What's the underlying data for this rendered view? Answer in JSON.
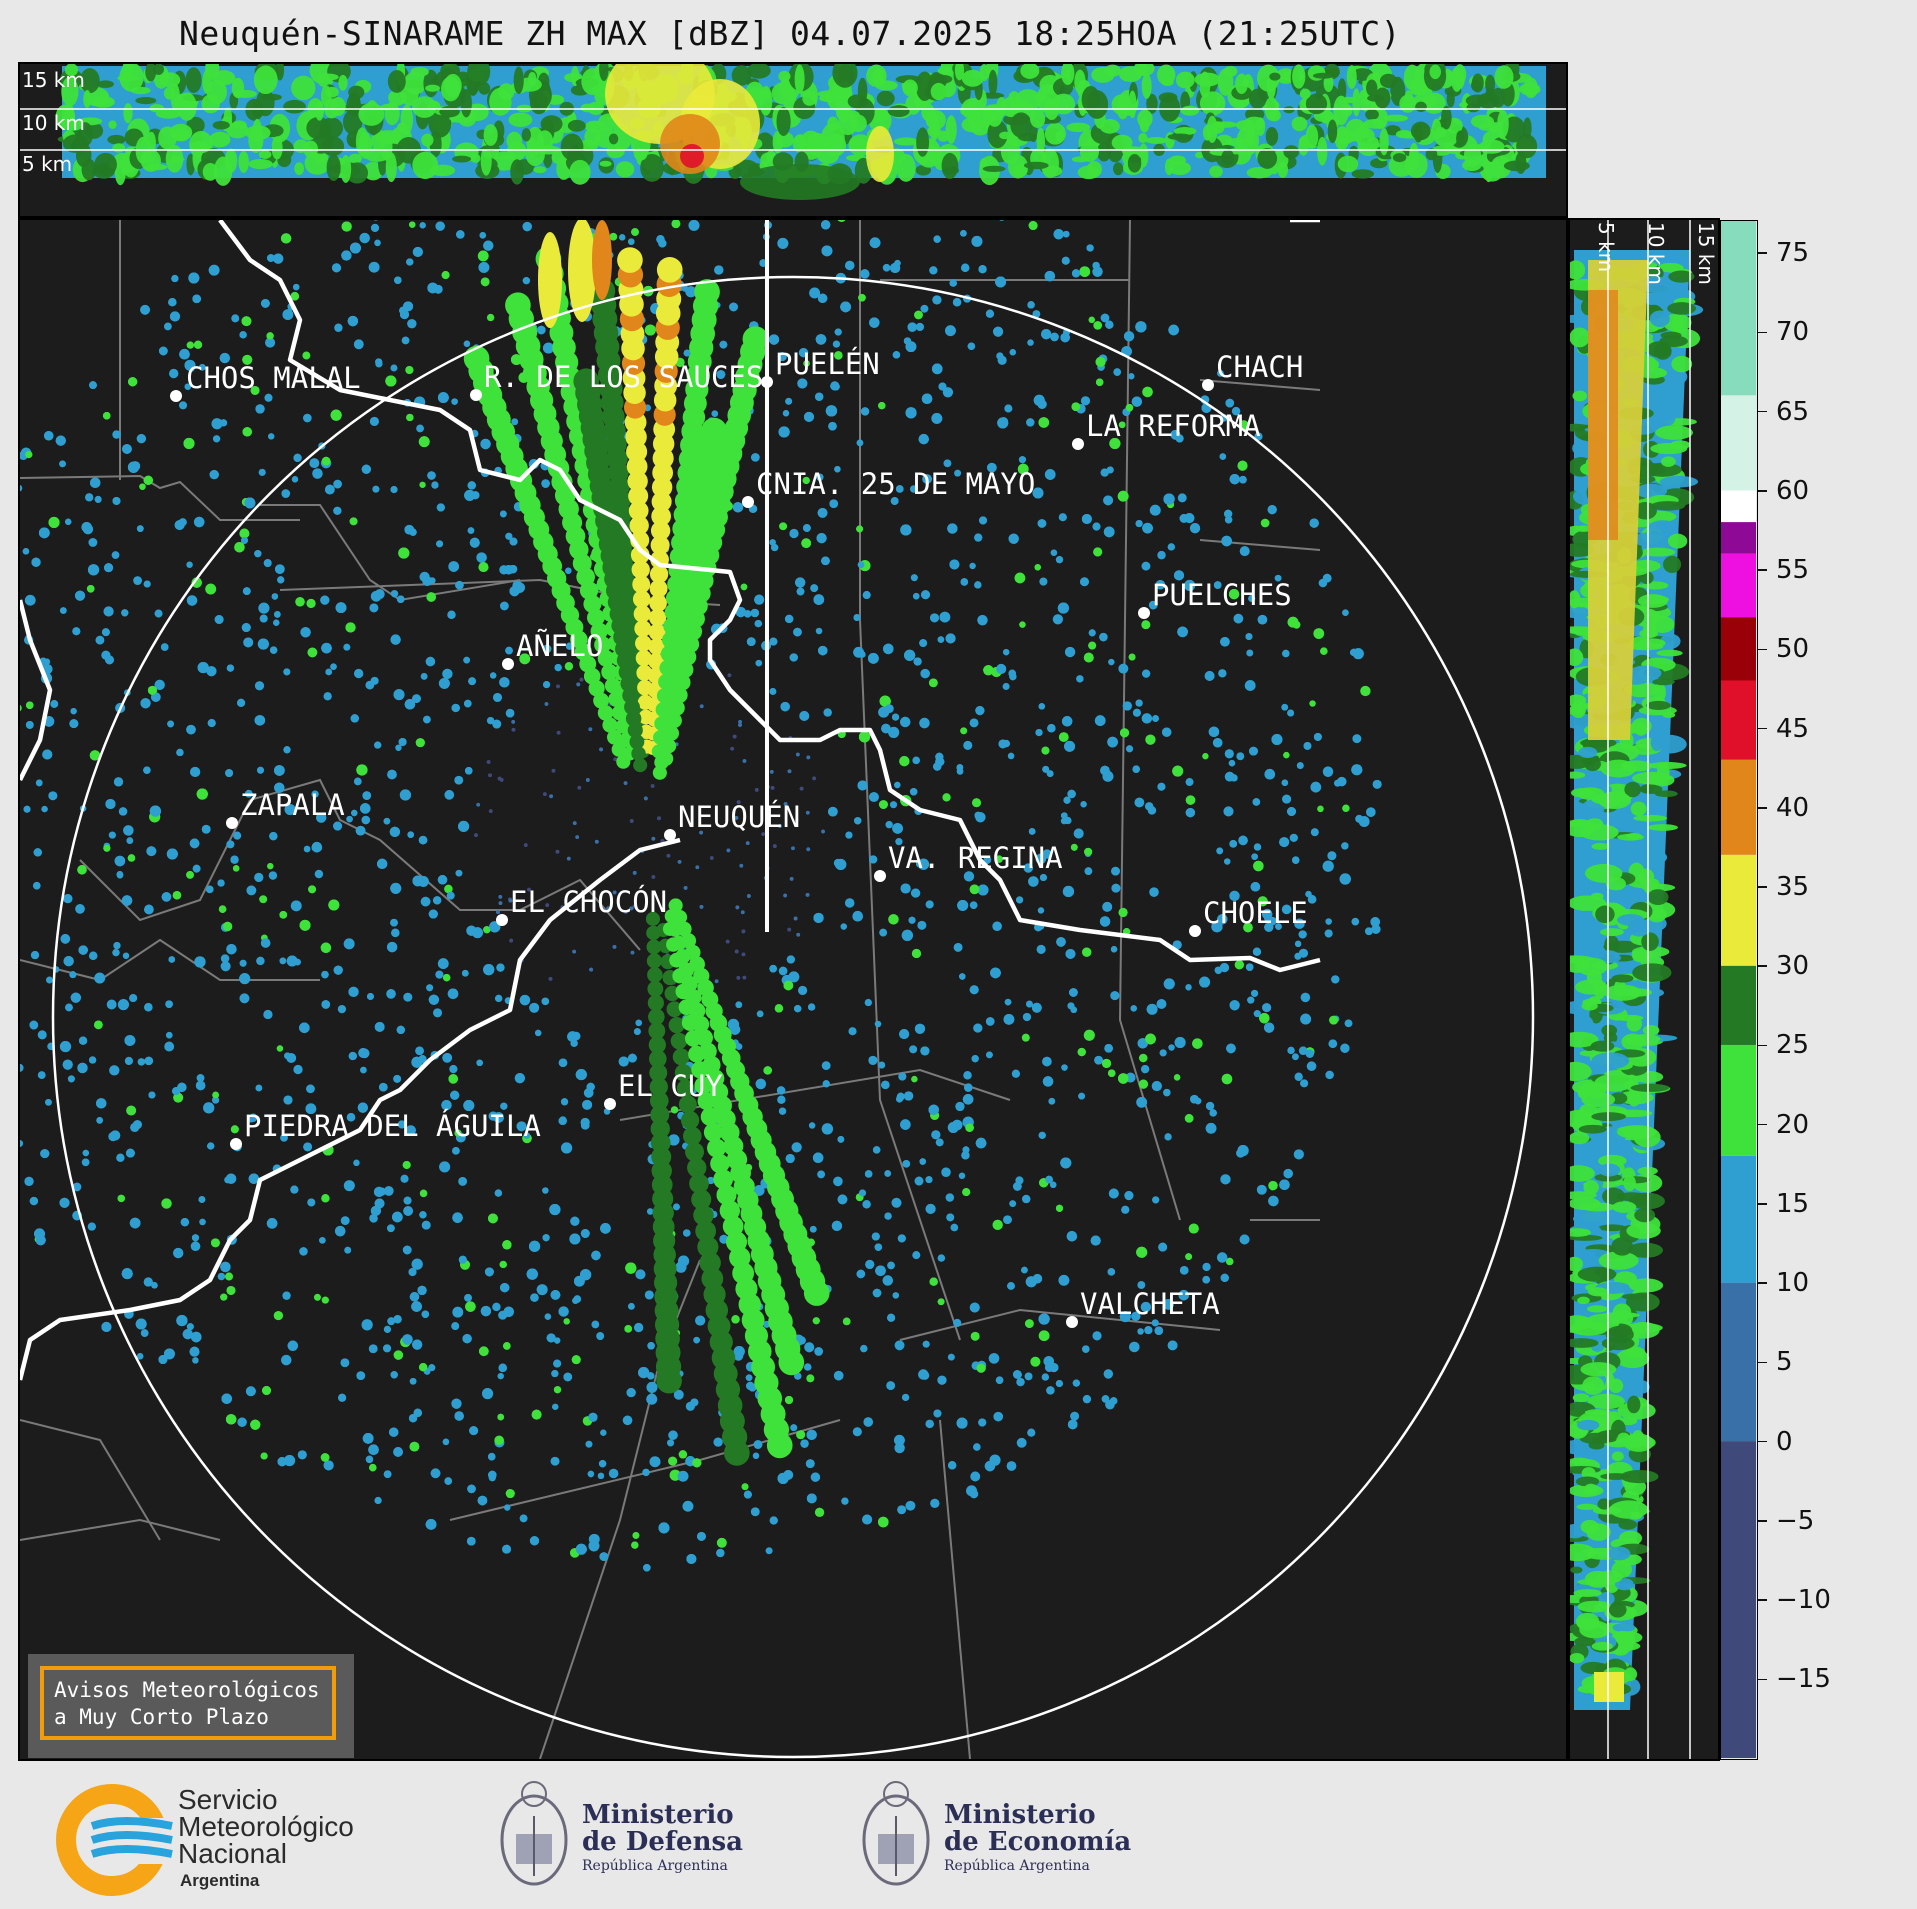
{
  "title": "Neuquén-SINARAME ZH MAX [dBZ] 04.07.2025 18:25HOA (21:25UTC)",
  "top_panel": {
    "alt_labels": [
      "15 km",
      "10 km",
      "5 km"
    ]
  },
  "side_panel": {
    "alt_labels": [
      "5 km",
      "10 km",
      "15 km"
    ]
  },
  "colorbar": {
    "unit": "dBZ",
    "ticks": [
      "75",
      "70",
      "65",
      "60",
      "55",
      "50",
      "45",
      "40",
      "35",
      "30",
      "25",
      "20",
      "15",
      "10",
      "5",
      "0",
      "−5",
      "−10",
      "−15"
    ],
    "tick_values": [
      75,
      70,
      65,
      60,
      55,
      50,
      45,
      40,
      35,
      30,
      25,
      20,
      15,
      10,
      5,
      0,
      -5,
      -10,
      -15
    ],
    "range": [
      -20,
      77
    ],
    "stops": [
      {
        "from": -20,
        "to": 0,
        "color": "#3f4a7a"
      },
      {
        "from": 0,
        "to": 10,
        "color": "#3a70a8"
      },
      {
        "from": 10,
        "to": 18,
        "color": "#2e9fd0"
      },
      {
        "from": 18,
        "to": 25,
        "color": "#3ee23a"
      },
      {
        "from": 25,
        "to": 30,
        "color": "#247a24"
      },
      {
        "from": 30,
        "to": 37,
        "color": "#eaea3a"
      },
      {
        "from": 37,
        "to": 43,
        "color": "#e0861a"
      },
      {
        "from": 43,
        "to": 48,
        "color": "#e0102a"
      },
      {
        "from": 48,
        "to": 52,
        "color": "#9a0008"
      },
      {
        "from": 52,
        "to": 56,
        "color": "#ee10e0"
      },
      {
        "from": 56,
        "to": 58,
        "color": "#8e0a96"
      },
      {
        "from": 58,
        "to": 60,
        "color": "#ffffff"
      },
      {
        "from": 60,
        "to": 66,
        "color": "#d5f2e6"
      },
      {
        "from": 66,
        "to": 77,
        "color": "#86dcbc"
      }
    ]
  },
  "map": {
    "cities": [
      {
        "id": "chos-malal",
        "name": "CHOS MALAL"
      },
      {
        "id": "rincon-de-los-sauces",
        "name": "R. DE LOS SAUCES"
      },
      {
        "id": "puelen",
        "name": "PUELÉN"
      },
      {
        "id": "chacharramendi",
        "name": "CHACH"
      },
      {
        "id": "la-reforma",
        "name": "LA REFORMA"
      },
      {
        "id": "colonia-25-de-mayo",
        "name": "CNIA. 25 DE MAYO"
      },
      {
        "id": "puelches",
        "name": "PUELCHES"
      },
      {
        "id": "anelo",
        "name": "AÑELO"
      },
      {
        "id": "zapala",
        "name": "ZAPALA"
      },
      {
        "id": "neuquen",
        "name": "NEUQUÉN"
      },
      {
        "id": "villa-regina",
        "name": "VA. REGINA"
      },
      {
        "id": "el-chocon",
        "name": "EL CHOCÓN"
      },
      {
        "id": "choele-choel",
        "name": "CHOELE"
      },
      {
        "id": "el-cuy",
        "name": "EL CUY"
      },
      {
        "id": "piedra-del-aguila",
        "name": "PIEDRA DEL ÁGUILA"
      },
      {
        "id": "valcheta",
        "name": "VALCHETA"
      }
    ]
  },
  "badge": {
    "line1": "Avisos Meteorológicos",
    "line2": "a Muy Corto Plazo"
  },
  "footer": {
    "smn": {
      "line1": "Servicio",
      "line2": "Meteorológico",
      "line3": "Nacional",
      "line4": "Argentina"
    },
    "defensa": {
      "line1": "Ministerio",
      "line2": "de Defensa",
      "line3": "República Argentina"
    },
    "economia": {
      "line1": "Ministerio",
      "line2": "de Economía",
      "line3": "República Argentina"
    }
  }
}
